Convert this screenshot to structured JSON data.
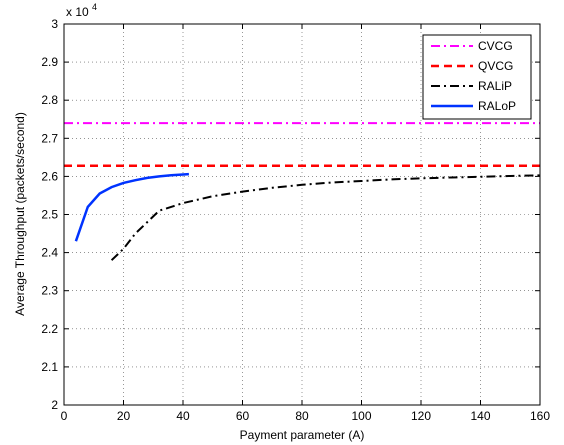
{
  "chart_data": {
    "type": "line",
    "xlabel": "Payment parameter (A)",
    "ylabel": "Average Throughput (packets/second)",
    "y_multiplier_label": {
      "base": "x 10",
      "exponent": "4"
    },
    "xlim": [
      0,
      160
    ],
    "ylim": [
      2.0,
      3.0
    ],
    "x_ticks": [
      0,
      20,
      40,
      60,
      80,
      100,
      120,
      140,
      160
    ],
    "y_ticks": [
      2.0,
      2.1,
      2.2,
      2.3,
      2.4,
      2.5,
      2.6,
      2.7,
      2.8,
      2.9,
      3.0
    ],
    "x_tick_labels": [
      "0",
      "20",
      "40",
      "60",
      "80",
      "100",
      "120",
      "140",
      "160"
    ],
    "y_tick_labels": [
      "2",
      "2.1",
      "2.2",
      "2.3",
      "2.4",
      "2.5",
      "2.6",
      "2.7",
      "2.8",
      "2.9",
      "3"
    ],
    "grid": true,
    "legend_position": "top-right",
    "series": [
      {
        "name": "CVCG",
        "color": "#ff00ff",
        "style": "dashdot",
        "x": [
          0,
          160
        ],
        "y": [
          2.74,
          2.74
        ]
      },
      {
        "name": "QVCG",
        "color": "#ff0000",
        "style": "dashed",
        "x": [
          0,
          160
        ],
        "y": [
          2.628,
          2.628
        ]
      },
      {
        "name": "RALiP",
        "color": "#000000",
        "style": "dashdot",
        "x": [
          16,
          20,
          24,
          28,
          32,
          36,
          40,
          50,
          60,
          70,
          80,
          90,
          100,
          110,
          120,
          130,
          140,
          150,
          160
        ],
        "y": [
          2.38,
          2.41,
          2.45,
          2.48,
          2.51,
          2.52,
          2.53,
          2.548,
          2.56,
          2.57,
          2.578,
          2.584,
          2.588,
          2.592,
          2.595,
          2.597,
          2.599,
          2.601,
          2.603
        ]
      },
      {
        "name": "RALoP",
        "color": "#0033ff",
        "style": "solid",
        "x": [
          4,
          8,
          12,
          16,
          20,
          24,
          28,
          32,
          36,
          40,
          42
        ],
        "y": [
          2.43,
          2.52,
          2.555,
          2.572,
          2.583,
          2.59,
          2.596,
          2.6,
          2.603,
          2.605,
          2.606
        ]
      }
    ]
  }
}
